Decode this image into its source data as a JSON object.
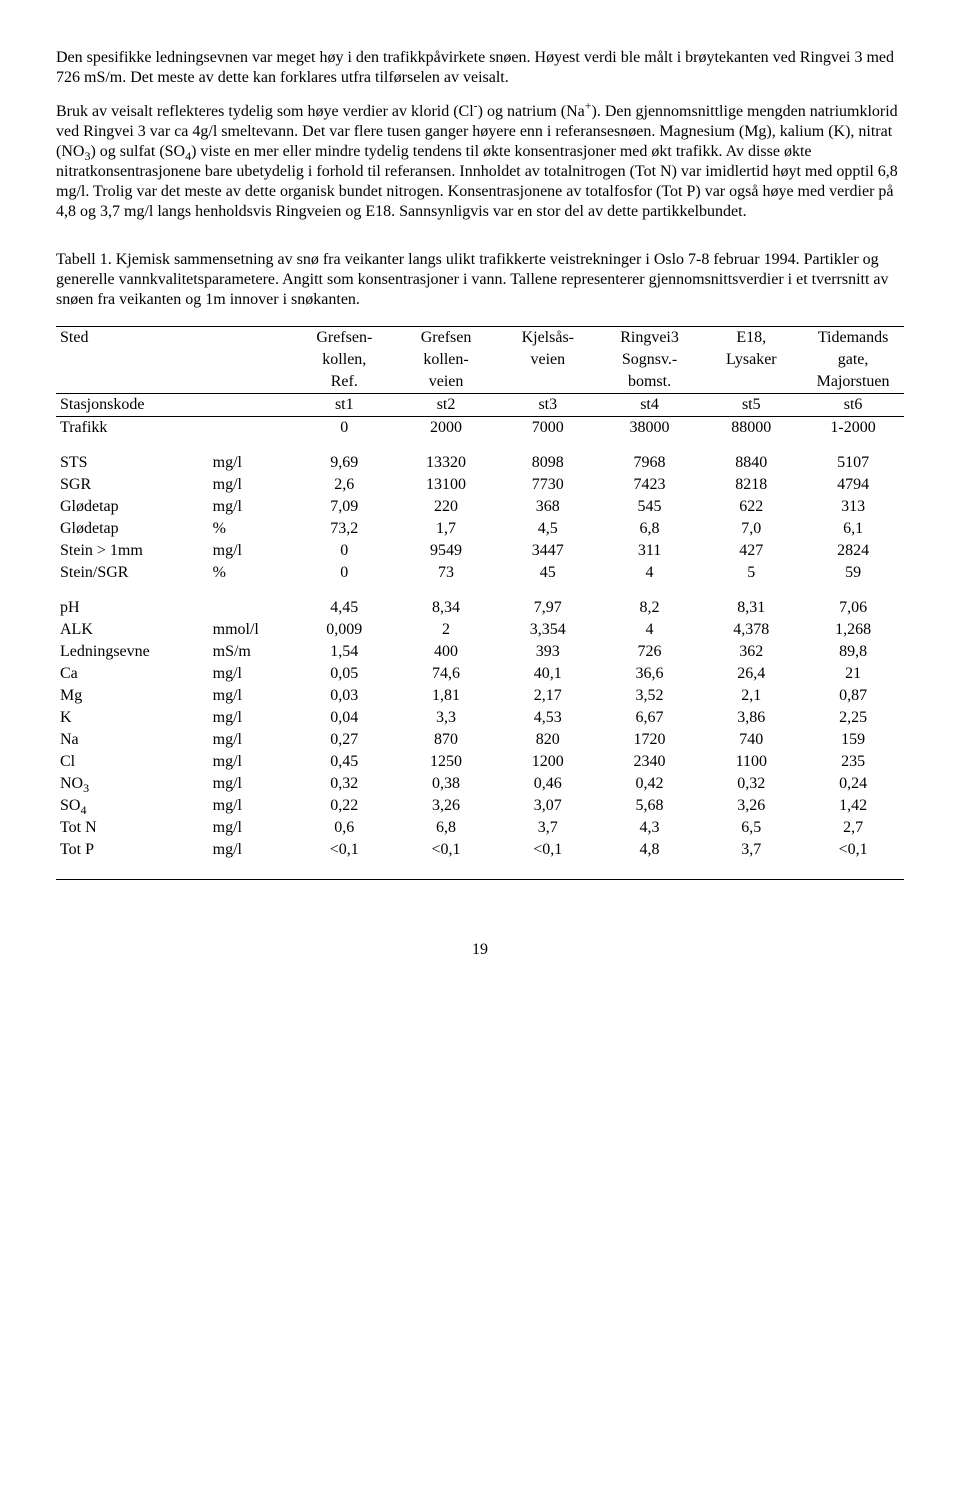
{
  "para1": "Den spesifikke ledningsevnen var meget høy i den trafikkpåvirkete snøen. Høyest verdi ble målt i brøytekanten ved Ringvei 3 med  726 mS/m. Det meste av dette kan forklares utfra tilførselen av veisalt.",
  "para2_pre": "Bruk av veisalt reflekteres tydelig som høye verdier av klorid (Cl",
  "para2_sup1": "-",
  "para2_mid1": ") og natrium (Na",
  "para2_sup2": "+",
  "para2_mid2": "). Den gjennomsnittlige mengden natriumklorid ved Ringvei 3 var ca 4g/l smeltevann. Det var flere tusen ganger høyere enn i referansesnøen. Magnesium (Mg), kalium (K), nitrat (NO",
  "para2_sub1": "3",
  "para2_mid3": ") og sulfat (SO",
  "para2_sub2": "4",
  "para2_tail": ") viste en mer eller mindre tydelig tendens til økte konsentrasjoner med økt trafikk. Av disse økte nitratkonsentrasjonene bare ubetydelig i forhold til referansen. Innholdet av totalnitrogen (Tot N) var imidlertid høyt med opptil 6,8 mg/l. Trolig var det meste av dette organisk bundet nitrogen. Konsentrasjonene av totalfosfor (Tot P) var også høye med verdier på 4,8 og 3,7 mg/l langs henholdsvis Ringveien og E18. Sannsynligvis var en stor del av dette partikkelbundet.",
  "caption": "Tabell 1. Kjemisk sammensetning av snø fra veikanter langs ulikt trafikkerte veistrekninger i Oslo 7-8 februar 1994. Partikler og generelle vannkvalitetsparametere. Angitt som konsentrasjoner i vann. Tallene representerer gjennomsnittsverdier i et tverrsnitt av snøen fra veikanten og 1m innover i snøkanten.",
  "header": {
    "site": "Sted",
    "c1a": "Grefsen-",
    "c1b": "kollen,",
    "c1c": "Ref.",
    "c2a": "Grefsen",
    "c2b": "kollen-",
    "c2c": "veien",
    "c3a": "Kjelsås-",
    "c3b": "veien",
    "c4a": "Ringvei3",
    "c4b": "Sognsv.-",
    "c4c": "bomst.",
    "c5a": "E18,",
    "c5b": "Lysaker",
    "c6a": "Tidemands",
    "c6b": "gate,",
    "c6c": "Majorstuen"
  },
  "station_row": {
    "label": "Stasjonskode",
    "v": [
      "st1",
      "st2",
      "st3",
      "st4",
      "st5",
      "st6"
    ]
  },
  "traffic_row": {
    "label": "Trafikk",
    "v": [
      "0",
      "2000",
      "7000",
      "38000",
      "88000",
      "1-2000"
    ]
  },
  "rows1": [
    {
      "label": "STS",
      "unit": "mg/l",
      "v": [
        "9,69",
        "13320",
        "8098",
        "7968",
        "8840",
        "5107"
      ]
    },
    {
      "label": "SGR",
      "unit": "mg/l",
      "v": [
        "2,6",
        "13100",
        "7730",
        "7423",
        "8218",
        "4794"
      ]
    },
    {
      "label": "Glødetap",
      "unit": "mg/l",
      "v": [
        "7,09",
        "220",
        "368",
        "545",
        "622",
        "313"
      ]
    },
    {
      "label": "Glødetap",
      "unit": "%",
      "v": [
        "73,2",
        "1,7",
        "4,5",
        "6,8",
        "7,0",
        "6,1"
      ]
    },
    {
      "label": "Stein > 1mm",
      "unit": "mg/l",
      "v": [
        "0",
        "9549",
        "3447",
        "311",
        "427",
        "2824"
      ]
    },
    {
      "label": "Stein/SGR",
      "unit": "%",
      "v": [
        "0",
        "73",
        "45",
        "4",
        "5",
        "59"
      ]
    }
  ],
  "rows2": [
    {
      "label": "pH",
      "unit": "",
      "v": [
        "4,45",
        "8,34",
        "7,97",
        "8,2",
        "8,31",
        "7,06"
      ]
    },
    {
      "label": "ALK",
      "unit": "mmol/l",
      "v": [
        "0,009",
        "2",
        "3,354",
        "4",
        "4,378",
        "1,268"
      ]
    },
    {
      "label": "Ledningsevne",
      "unit": "mS/m",
      "v": [
        "1,54",
        "400",
        "393",
        "726",
        "362",
        "89,8"
      ]
    },
    {
      "label": "Ca",
      "unit": "mg/l",
      "v": [
        "0,05",
        "74,6",
        "40,1",
        "36,6",
        "26,4",
        "21"
      ]
    },
    {
      "label": "Mg",
      "unit": "mg/l",
      "v": [
        "0,03",
        "1,81",
        "2,17",
        "3,52",
        "2,1",
        "0,87"
      ]
    },
    {
      "label": "K",
      "unit": "mg/l",
      "v": [
        "0,04",
        "3,3",
        "4,53",
        "6,67",
        "3,86",
        "2,25"
      ]
    },
    {
      "label": "Na",
      "unit": "mg/l",
      "v": [
        "0,27",
        "870",
        "820",
        "1720",
        "740",
        "159"
      ]
    },
    {
      "label": "Cl",
      "unit": "mg/l",
      "v": [
        "0,45",
        "1250",
        "1200",
        "2340",
        "1100",
        "235"
      ]
    },
    {
      "label_html": "NO<sub>3</sub>",
      "label": "NO3",
      "unit": "mg/l",
      "v": [
        "0,32",
        "0,38",
        "0,46",
        "0,42",
        "0,32",
        "0,24"
      ]
    },
    {
      "label_html": "SO<sub>4</sub>",
      "label": "SO4",
      "unit": "mg/l",
      "v": [
        "0,22",
        "3,26",
        "3,07",
        "5,68",
        "3,26",
        "1,42"
      ]
    },
    {
      "label": "Tot N",
      "unit": "mg/l",
      "v": [
        "0,6",
        "6,8",
        "3,7",
        "4,3",
        "6,5",
        "2,7"
      ]
    },
    {
      "label": "Tot P",
      "unit": "mg/l",
      "v": [
        "<0,1",
        "<0,1",
        "<0,1",
        "4,8",
        "3,7",
        "<0,1"
      ]
    }
  ],
  "pagenum": "19"
}
